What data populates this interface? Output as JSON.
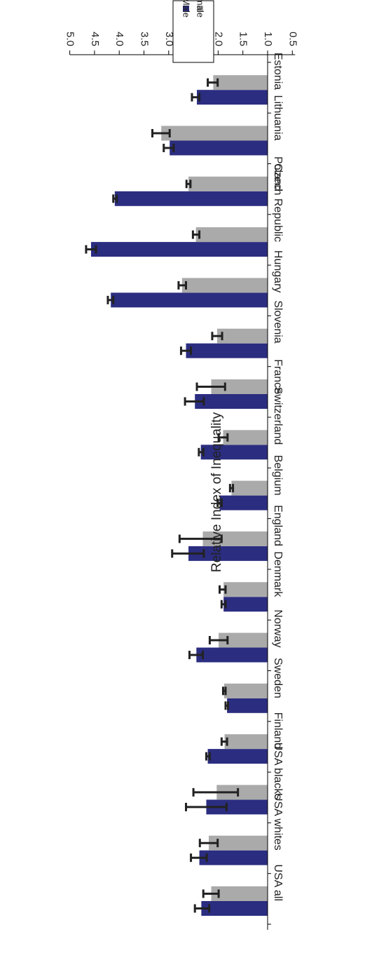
{
  "chart_data": {
    "type": "bar",
    "orientation": "horizontal",
    "rotated": "180deg",
    "ylabel": "Relative Index of Inequality",
    "ylim": [
      0.5,
      5.0
    ],
    "yticks": [
      "0.5",
      "1.0",
      "1.5",
      "2.0",
      "2.5",
      "3.0",
      "3.5",
      "4.0",
      "4.5",
      "5.0"
    ],
    "baseline": 1.0,
    "legend": {
      "position": "top-right",
      "entries": [
        "Male",
        "Female"
      ]
    },
    "categories": [
      "USA all",
      "USA whites",
      "USA blacks",
      "Finland",
      "Sweden",
      "Norway",
      "Denmark",
      "England",
      "Belgium",
      "Switzerland",
      "France",
      "Slovenia",
      "Hungary",
      "Czech Republic",
      "Poland",
      "Lithuania",
      "Estonia"
    ],
    "series": [
      {
        "name": "Male",
        "color": "#2b2d80",
        "values": [
          2.34,
          2.38,
          2.24,
          2.21,
          1.82,
          2.44,
          1.89,
          2.6,
          1.97,
          2.35,
          2.47,
          2.65,
          4.17,
          4.57,
          4.09,
          2.98,
          2.43
        ],
        "errors": [
          [
            2.18,
            2.47
          ],
          [
            2.23,
            2.55
          ],
          [
            1.83,
            2.65
          ],
          [
            2.17,
            2.24
          ],
          [
            1.8,
            1.85
          ],
          [
            2.31,
            2.58
          ],
          [
            1.85,
            1.93
          ],
          [
            2.29,
            2.93
          ],
          [
            1.93,
            2.01
          ],
          [
            2.3,
            2.39
          ],
          [
            2.29,
            2.67
          ],
          [
            2.55,
            2.75
          ],
          [
            4.12,
            4.23
          ],
          [
            4.47,
            4.67
          ],
          [
            4.05,
            4.12
          ],
          [
            2.9,
            3.1
          ],
          [
            2.38,
            2.53
          ]
        ]
      },
      {
        "name": "Female",
        "color": "#aaaaaa",
        "values": [
          2.14,
          2.19,
          2.03,
          1.87,
          1.88,
          1.99,
          1.89,
          2.31,
          1.73,
          1.9,
          2.14,
          2.02,
          2.73,
          2.45,
          2.6,
          3.15,
          2.1
        ],
        "errors": [
          [
            1.99,
            2.3
          ],
          [
            2.01,
            2.37
          ],
          [
            1.6,
            2.5
          ],
          [
            1.82,
            1.93
          ],
          [
            1.85,
            1.9
          ],
          [
            1.81,
            2.17
          ],
          [
            1.85,
            1.97
          ],
          [
            1.93,
            2.78
          ],
          [
            1.7,
            1.76
          ],
          [
            1.81,
            1.99
          ],
          [
            1.86,
            2.43
          ],
          [
            1.92,
            2.12
          ],
          [
            2.65,
            2.8
          ],
          [
            2.38,
            2.51
          ],
          [
            2.56,
            2.64
          ],
          [
            2.98,
            3.33
          ],
          [
            2.01,
            2.21
          ]
        ]
      }
    ]
  }
}
